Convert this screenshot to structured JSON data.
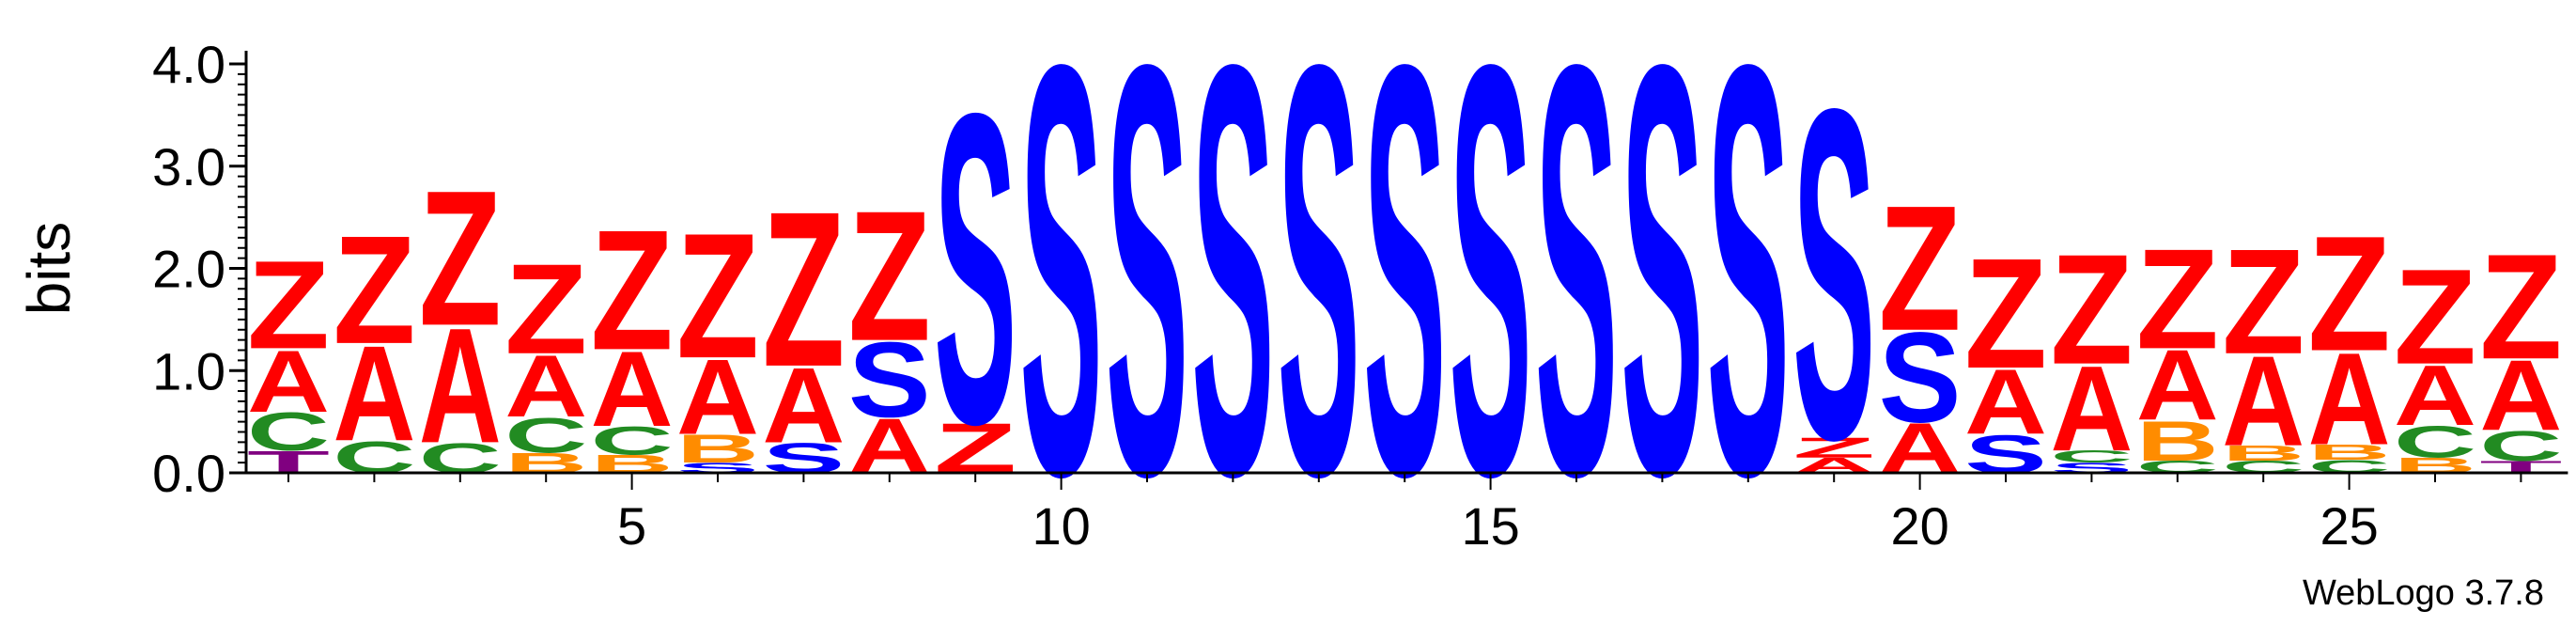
{
  "chart_data": {
    "type": "sequence-logo",
    "ylabel": "bits",
    "ylim": [
      0,
      4.0
    ],
    "yticks": [
      "0.0",
      "1.0",
      "2.0",
      "3.0",
      "4.0"
    ],
    "xticks": [
      5,
      10,
      15,
      20,
      25
    ],
    "x_range": [
      1,
      27
    ],
    "watermark": "WebLogo 3.7.8",
    "colors": {
      "Z": "#ff0000",
      "A": "#ff0000",
      "S": "#0000ff",
      "C": "#228b22",
      "B": "#ff8c00",
      "T": "#800080"
    },
    "positions": [
      {
        "pos": 1,
        "stack": [
          {
            "letter": "T",
            "bits": 0.22
          },
          {
            "letter": "C",
            "bits": 0.38
          },
          {
            "letter": "A",
            "bits": 0.62
          },
          {
            "letter": "Z",
            "bits": 0.88
          }
        ]
      },
      {
        "pos": 2,
        "stack": [
          {
            "letter": "C",
            "bits": 0.32
          },
          {
            "letter": "A",
            "bits": 0.95
          },
          {
            "letter": "Z",
            "bits": 1.08
          }
        ]
      },
      {
        "pos": 3,
        "stack": [
          {
            "letter": "C",
            "bits": 0.3
          },
          {
            "letter": "A",
            "bits": 1.15
          },
          {
            "letter": "Z",
            "bits": 1.35
          }
        ]
      },
      {
        "pos": 4,
        "stack": [
          {
            "letter": "B",
            "bits": 0.2
          },
          {
            "letter": "C",
            "bits": 0.35
          },
          {
            "letter": "A",
            "bits": 0.62
          },
          {
            "letter": "Z",
            "bits": 0.9
          }
        ]
      },
      {
        "pos": 5,
        "stack": [
          {
            "letter": "B",
            "bits": 0.18
          },
          {
            "letter": "C",
            "bits": 0.28
          },
          {
            "letter": "A",
            "bits": 0.75
          },
          {
            "letter": "Z",
            "bits": 1.2
          }
        ]
      },
      {
        "pos": 6,
        "stack": [
          {
            "letter": "S",
            "bits": 0.1
          },
          {
            "letter": "B",
            "bits": 0.28
          },
          {
            "letter": "A",
            "bits": 0.75
          },
          {
            "letter": "Z",
            "bits": 1.25
          }
        ]
      },
      {
        "pos": 7,
        "stack": [
          {
            "letter": "S",
            "bits": 0.3
          },
          {
            "letter": "A",
            "bits": 0.75
          },
          {
            "letter": "Z",
            "bits": 1.55
          }
        ]
      },
      {
        "pos": 8,
        "stack": [
          {
            "letter": "A",
            "bits": 0.55
          },
          {
            "letter": "S",
            "bits": 0.75
          },
          {
            "letter": "Z",
            "bits": 1.3
          }
        ]
      },
      {
        "pos": 9,
        "stack": [
          {
            "letter": "Z",
            "bits": 0.5
          },
          {
            "letter": "S",
            "bits": 3.1
          }
        ]
      },
      {
        "pos": 10,
        "stack": [
          {
            "letter": "S",
            "bits": 4.1
          }
        ]
      },
      {
        "pos": 11,
        "stack": [
          {
            "letter": "S",
            "bits": 4.1
          }
        ]
      },
      {
        "pos": 12,
        "stack": [
          {
            "letter": "S",
            "bits": 4.1
          }
        ]
      },
      {
        "pos": 13,
        "stack": [
          {
            "letter": "S",
            "bits": 4.1
          }
        ]
      },
      {
        "pos": 14,
        "stack": [
          {
            "letter": "S",
            "bits": 4.1
          }
        ]
      },
      {
        "pos": 15,
        "stack": [
          {
            "letter": "S",
            "bits": 4.1
          }
        ]
      },
      {
        "pos": 16,
        "stack": [
          {
            "letter": "S",
            "bits": 4.1
          }
        ]
      },
      {
        "pos": 17,
        "stack": [
          {
            "letter": "S",
            "bits": 4.1
          }
        ]
      },
      {
        "pos": 18,
        "stack": [
          {
            "letter": "S",
            "bits": 4.1
          }
        ]
      },
      {
        "pos": 19,
        "stack": [
          {
            "letter": "A",
            "bits": 0.15
          },
          {
            "letter": "Z",
            "bits": 0.2
          },
          {
            "letter": "S",
            "bits": 3.3
          }
        ]
      },
      {
        "pos": 20,
        "stack": [
          {
            "letter": "A",
            "bits": 0.5
          },
          {
            "letter": "S",
            "bits": 0.9
          },
          {
            "letter": "Z",
            "bits": 1.25
          }
        ]
      },
      {
        "pos": 21,
        "stack": [
          {
            "letter": "S",
            "bits": 0.38
          },
          {
            "letter": "A",
            "bits": 0.65
          },
          {
            "letter": "Z",
            "bits": 1.1
          }
        ]
      },
      {
        "pos": 22,
        "stack": [
          {
            "letter": "S",
            "bits": 0.1
          },
          {
            "letter": "C",
            "bits": 0.12
          },
          {
            "letter": "A",
            "bits": 0.85
          },
          {
            "letter": "Z",
            "bits": 1.1
          }
        ]
      },
      {
        "pos": 23,
        "stack": [
          {
            "letter": "C",
            "bits": 0.12
          },
          {
            "letter": "B",
            "bits": 0.4
          },
          {
            "letter": "A",
            "bits": 0.7
          },
          {
            "letter": "Z",
            "bits": 1.0
          }
        ]
      },
      {
        "pos": 24,
        "stack": [
          {
            "letter": "C",
            "bits": 0.12
          },
          {
            "letter": "B",
            "bits": 0.15
          },
          {
            "letter": "A",
            "bits": 0.9
          },
          {
            "letter": "Z",
            "bits": 1.05
          }
        ]
      },
      {
        "pos": 25,
        "stack": [
          {
            "letter": "C",
            "bits": 0.13
          },
          {
            "letter": "B",
            "bits": 0.15
          },
          {
            "letter": "A",
            "bits": 0.92
          },
          {
            "letter": "Z",
            "bits": 1.15
          }
        ]
      },
      {
        "pos": 26,
        "stack": [
          {
            "letter": "B",
            "bits": 0.15
          },
          {
            "letter": "C",
            "bits": 0.32
          },
          {
            "letter": "A",
            "bits": 0.6
          },
          {
            "letter": "Z",
            "bits": 0.95
          }
        ]
      },
      {
        "pos": 27,
        "stack": [
          {
            "letter": "T",
            "bits": 0.12
          },
          {
            "letter": "C",
            "bits": 0.3
          },
          {
            "letter": "A",
            "bits": 0.7
          },
          {
            "letter": "Z",
            "bits": 1.05
          }
        ]
      }
    ]
  }
}
